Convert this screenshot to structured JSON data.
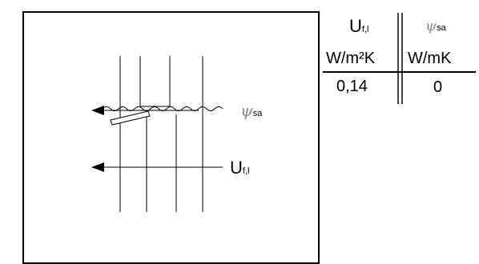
{
  "diagram": {
    "psi_symbol": "ψ",
    "psi_subscript": "sa",
    "u_symbol": "U",
    "u_subscript": "f,l"
  },
  "table": {
    "col1": {
      "symbol": "U",
      "subscript": "f,l",
      "unit": "W/m²K",
      "value": "0,14"
    },
    "col2": {
      "symbol": "ψ",
      "subscript": "sa",
      "unit": "W/mK",
      "value": "0"
    }
  },
  "colors": {
    "line": "#000000",
    "psi": "#8a8a8a"
  }
}
